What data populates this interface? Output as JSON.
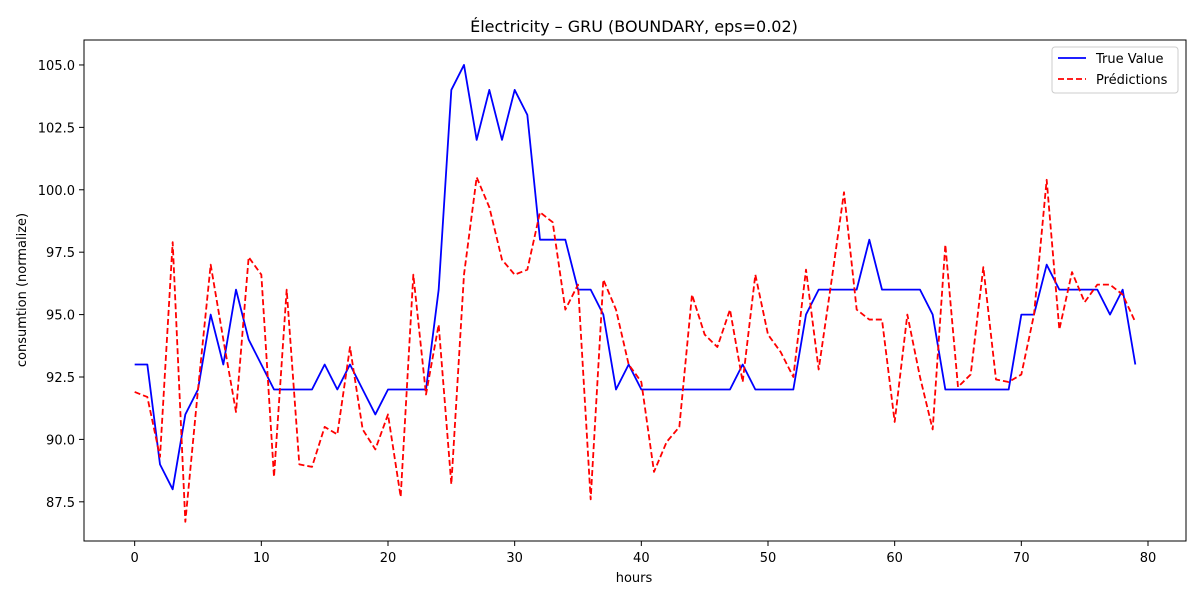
{
  "chart_data": {
    "type": "line",
    "title": "Électricity – GRU (BOUNDARY, eps=0.02)",
    "xlabel": "hours",
    "ylabel": "consumtion (normalize)",
    "xlim": [
      -4,
      83
    ],
    "ylim": [
      85.93,
      106.0
    ],
    "xticks": [
      0,
      10,
      20,
      30,
      40,
      50,
      60,
      70,
      80
    ],
    "yticks": [
      87.5,
      90.0,
      92.5,
      95.0,
      97.5,
      100.0,
      102.5,
      105.0
    ],
    "yticks_labels": [
      "87.5",
      "90.0",
      "92.5",
      "95.0",
      "97.5",
      "100.0",
      "102.5",
      "105.0"
    ],
    "grid": false,
    "legend_position": "top-right",
    "x": [
      0,
      1,
      2,
      3,
      4,
      5,
      6,
      7,
      8,
      9,
      10,
      11,
      12,
      13,
      14,
      15,
      16,
      17,
      18,
      19,
      20,
      21,
      22,
      23,
      24,
      25,
      26,
      27,
      28,
      29,
      30,
      31,
      32,
      33,
      34,
      35,
      36,
      37,
      38,
      39,
      40,
      41,
      42,
      43,
      44,
      45,
      46,
      47,
      48,
      49,
      50,
      51,
      52,
      53,
      54,
      55,
      56,
      57,
      58,
      59,
      60,
      61,
      62,
      63,
      64,
      65,
      66,
      67,
      68,
      69,
      70,
      71,
      72,
      73,
      74,
      75,
      76,
      77,
      78,
      79
    ],
    "series": [
      {
        "name": "True Value",
        "color": "#0000ff",
        "style": "solid",
        "values": [
          93,
          93,
          89,
          88,
          91,
          92,
          95,
          93,
          96,
          94,
          93,
          92,
          92,
          92,
          92,
          93,
          92,
          93,
          92,
          91,
          92,
          92,
          92,
          92,
          96,
          104,
          105,
          102,
          104,
          102,
          104,
          103,
          98,
          98,
          98,
          96,
          96,
          95,
          92,
          93,
          92,
          92,
          92,
          92,
          92,
          92,
          92,
          92,
          93,
          92,
          92,
          92,
          92,
          95,
          96,
          96,
          96,
          96,
          98,
          96,
          96,
          96,
          96,
          95,
          92,
          92,
          92,
          92,
          92,
          92,
          95,
          95,
          97,
          96,
          96,
          96,
          96,
          95,
          96,
          93
        ]
      },
      {
        "name": "Prédictions",
        "color": "#ff0000",
        "style": "dashed",
        "values": [
          91.9,
          91.7,
          89.3,
          97.9,
          86.7,
          92.0,
          97.0,
          94.0,
          91.1,
          97.3,
          96.6,
          88.5,
          96.0,
          89.0,
          88.9,
          90.5,
          90.2,
          93.7,
          90.4,
          89.6,
          91.0,
          87.7,
          96.6,
          91.8,
          94.6,
          88.2,
          96.6,
          100.5,
          99.3,
          97.2,
          96.6,
          96.8,
          99.1,
          98.7,
          95.2,
          96.2,
          87.6,
          96.4,
          95.2,
          93.0,
          92.3,
          88.7,
          89.9,
          90.5,
          95.8,
          94.2,
          93.7,
          95.2,
          92.3,
          96.6,
          94.2,
          93.5,
          92.5,
          96.8,
          92.8,
          96.3,
          99.9,
          95.2,
          94.8,
          94.8,
          90.7,
          95.0,
          92.5,
          90.4,
          97.8,
          92.1,
          92.6,
          96.9,
          92.4,
          92.3,
          92.6,
          95.0,
          100.4,
          94.4,
          96.7,
          95.5,
          96.2,
          96.2,
          95.8,
          94.7
        ]
      }
    ]
  }
}
